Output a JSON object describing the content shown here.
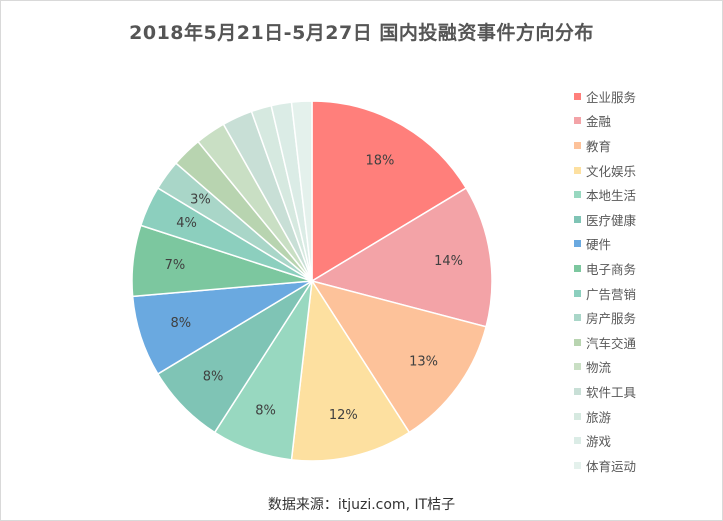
{
  "chart_data": {
    "type": "pie",
    "title": "2018年5月21日-5月27日 国内投融资事件方向分布",
    "categories": [
      "企业服务",
      "金融",
      "教育",
      "文化娱乐",
      "本地生活",
      "医疗健康",
      "硬件",
      "电子商务",
      "广告营销",
      "房产服务",
      "汽车交通",
      "物流",
      "软件工具",
      "旅游",
      "游戏",
      "体育运动"
    ],
    "values": [
      18,
      14,
      13,
      12,
      8,
      8,
      8,
      7,
      4,
      3,
      3,
      3,
      3,
      2,
      2,
      2
    ],
    "labels": [
      "18%",
      "14%",
      "13%",
      "12%",
      "8%",
      "8%",
      "8%",
      "7%",
      "4%",
      "3%",
      "",
      "",
      "",
      "",
      "",
      ""
    ],
    "colors": [
      "#ff7f7b",
      "#f3a3a7",
      "#fdc29a",
      "#fde0a0",
      "#98d8c0",
      "#7fc4b5",
      "#6aa9e0",
      "#7cc79f",
      "#8ccfbe",
      "#a9d6c8",
      "#b8d4b0",
      "#c9dfc4",
      "#c8dfd6",
      "#d6e9e0",
      "#dbece6",
      "#e4f1ec"
    ],
    "legend_position": "right"
  },
  "source": "数据来源：itjuzi.com, IT桔子"
}
